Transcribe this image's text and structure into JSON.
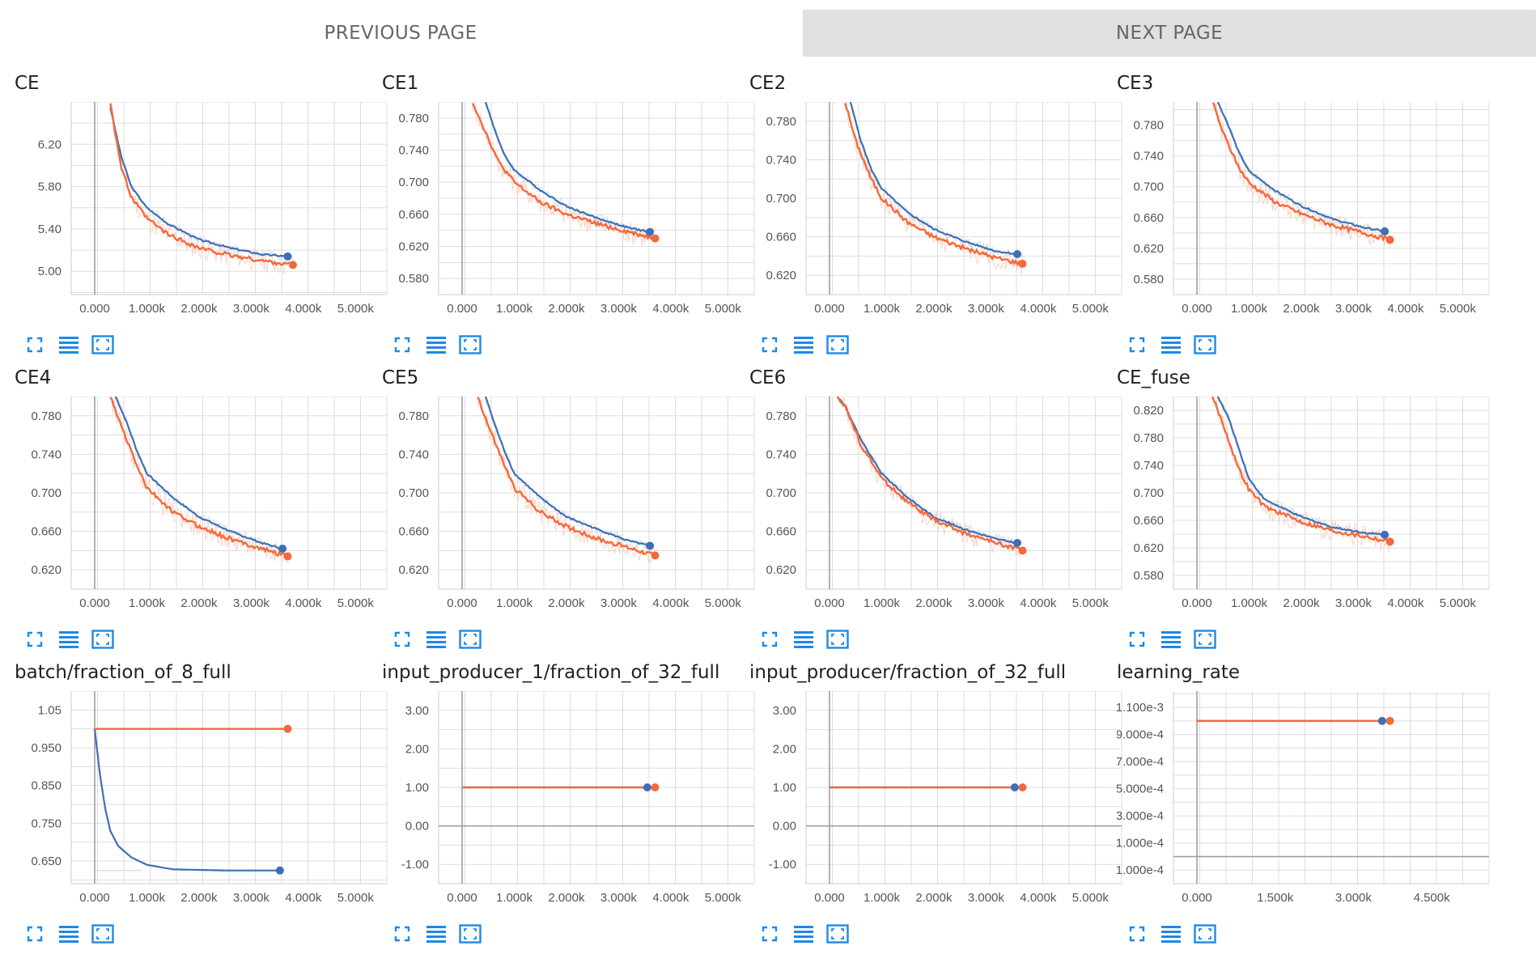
{
  "nav": {
    "prev_label": "PREVIOUS PAGE",
    "next_label": "NEXT PAGE"
  },
  "icons": {
    "expand": "fullscreen-icon",
    "data": "list-icon",
    "fit": "fit-domain-icon"
  },
  "colors": {
    "smoothed": "#f4693b",
    "raw": "#fbd3c4",
    "blue": "#3e6fb5",
    "grid": "#dddddd",
    "axis": "#999999",
    "icon": "#1e88e5"
  },
  "chart_data": [
    {
      "title": "CE",
      "type": "line",
      "xticks": [
        "0.000",
        "1.000k",
        "2.000k",
        "3.000k",
        "4.000k",
        "5.000k"
      ],
      "xlim": [
        -450,
        5600
      ],
      "yticks": [
        "5.00",
        "5.40",
        "5.80",
        "6.20"
      ],
      "ytick_values": [
        5.0,
        5.4,
        5.8,
        6.2
      ],
      "ylim": [
        4.78,
        6.6
      ],
      "series": [
        {
          "values": [
            [
              300,
              6.55
            ],
            [
              500,
              6.1
            ],
            [
              700,
              5.8
            ],
            [
              1000,
              5.6
            ],
            [
              1400,
              5.45
            ],
            [
              2000,
              5.3
            ],
            [
              2600,
              5.22
            ],
            [
              3200,
              5.16
            ],
            [
              3700,
              5.14
            ]
          ]
        },
        {
          "values": [
            [
              300,
              6.6
            ],
            [
              500,
              6.0
            ],
            [
              700,
              5.7
            ],
            [
              1000,
              5.5
            ],
            [
              1400,
              5.35
            ],
            [
              2000,
              5.22
            ],
            [
              2600,
              5.15
            ],
            [
              3200,
              5.1
            ],
            [
              3800,
              5.06
            ]
          ]
        }
      ]
    },
    {
      "title": "CE1",
      "type": "line",
      "xticks": [
        "0.000",
        "1.000k",
        "2.000k",
        "3.000k",
        "4.000k",
        "5.000k"
      ],
      "xlim": [
        -450,
        5600
      ],
      "yticks": [
        "0.580",
        "0.620",
        "0.660",
        "0.700",
        "0.740",
        "0.780"
      ],
      "ytick_values": [
        0.58,
        0.62,
        0.66,
        0.7,
        0.74,
        0.78
      ],
      "ylim": [
        0.56,
        0.8
      ],
      "series": [
        {
          "values": [
            [
              450,
              0.8
            ],
            [
              600,
              0.77
            ],
            [
              800,
              0.735
            ],
            [
              1000,
              0.715
            ],
            [
              1500,
              0.69
            ],
            [
              2000,
              0.67
            ],
            [
              2600,
              0.655
            ],
            [
              3200,
              0.643
            ],
            [
              3600,
              0.638
            ]
          ]
        },
        {
          "values": [
            [
              200,
              0.8
            ],
            [
              400,
              0.77
            ],
            [
              700,
              0.725
            ],
            [
              1000,
              0.7
            ],
            [
              1500,
              0.675
            ],
            [
              2000,
              0.66
            ],
            [
              2600,
              0.648
            ],
            [
              3200,
              0.638
            ],
            [
              3700,
              0.63
            ]
          ]
        }
      ]
    },
    {
      "title": "CE2",
      "type": "line",
      "xticks": [
        "0.000",
        "1.000k",
        "2.000k",
        "3.000k",
        "4.000k",
        "5.000k"
      ],
      "xlim": [
        -450,
        5600
      ],
      "yticks": [
        "0.620",
        "0.660",
        "0.700",
        "0.740",
        "0.780"
      ],
      "ytick_values": [
        0.62,
        0.66,
        0.7,
        0.74,
        0.78
      ],
      "ylim": [
        0.6,
        0.8
      ],
      "series": [
        {
          "values": [
            [
              400,
              0.8
            ],
            [
              600,
              0.76
            ],
            [
              800,
              0.73
            ],
            [
              1000,
              0.71
            ],
            [
              1500,
              0.685
            ],
            [
              2000,
              0.668
            ],
            [
              2600,
              0.655
            ],
            [
              3200,
              0.645
            ],
            [
              3600,
              0.642
            ]
          ]
        },
        {
          "values": [
            [
              300,
              0.8
            ],
            [
              500,
              0.76
            ],
            [
              800,
              0.72
            ],
            [
              1000,
              0.7
            ],
            [
              1500,
              0.675
            ],
            [
              2000,
              0.66
            ],
            [
              2600,
              0.648
            ],
            [
              3200,
              0.638
            ],
            [
              3700,
              0.632
            ]
          ]
        }
      ]
    },
    {
      "title": "CE3",
      "type": "line",
      "xticks": [
        "0.000",
        "1.000k",
        "2.000k",
        "3.000k",
        "4.000k",
        "5.000k"
      ],
      "xlim": [
        -450,
        5600
      ],
      "yticks": [
        "0.580",
        "0.620",
        "0.660",
        "0.700",
        "0.740",
        "0.780"
      ],
      "ytick_values": [
        0.58,
        0.62,
        0.66,
        0.7,
        0.74,
        0.78
      ],
      "ylim": [
        0.56,
        0.81
      ],
      "series": [
        {
          "values": [
            [
              400,
              0.81
            ],
            [
              600,
              0.78
            ],
            [
              800,
              0.745
            ],
            [
              1000,
              0.72
            ],
            [
              1500,
              0.695
            ],
            [
              2000,
              0.675
            ],
            [
              2600,
              0.658
            ],
            [
              3200,
              0.647
            ],
            [
              3600,
              0.642
            ]
          ]
        },
        {
          "values": [
            [
              300,
              0.81
            ],
            [
              500,
              0.77
            ],
            [
              800,
              0.725
            ],
            [
              1000,
              0.705
            ],
            [
              1500,
              0.68
            ],
            [
              2000,
              0.665
            ],
            [
              2600,
              0.65
            ],
            [
              3200,
              0.64
            ],
            [
              3700,
              0.631
            ]
          ]
        }
      ]
    },
    {
      "title": "CE4",
      "type": "line",
      "xticks": [
        "0.000",
        "1.000k",
        "2.000k",
        "3.000k",
        "4.000k",
        "5.000k"
      ],
      "xlim": [
        -450,
        5600
      ],
      "yticks": [
        "0.620",
        "0.660",
        "0.700",
        "0.740",
        "0.780"
      ],
      "ytick_values": [
        0.62,
        0.66,
        0.7,
        0.74,
        0.78
      ],
      "ylim": [
        0.6,
        0.8
      ],
      "series": [
        {
          "values": [
            [
              400,
              0.8
            ],
            [
              600,
              0.775
            ],
            [
              800,
              0.745
            ],
            [
              1000,
              0.72
            ],
            [
              1500,
              0.695
            ],
            [
              2000,
              0.675
            ],
            [
              2600,
              0.66
            ],
            [
              3200,
              0.648
            ],
            [
              3600,
              0.642
            ]
          ]
        },
        {
          "values": [
            [
              300,
              0.8
            ],
            [
              500,
              0.77
            ],
            [
              800,
              0.73
            ],
            [
              1000,
              0.705
            ],
            [
              1500,
              0.68
            ],
            [
              2000,
              0.665
            ],
            [
              2600,
              0.652
            ],
            [
              3200,
              0.642
            ],
            [
              3700,
              0.634
            ]
          ]
        }
      ]
    },
    {
      "title": "CE5",
      "type": "line",
      "xticks": [
        "0.000",
        "1.000k",
        "2.000k",
        "3.000k",
        "4.000k",
        "5.000k"
      ],
      "xlim": [
        -450,
        5600
      ],
      "yticks": [
        "0.620",
        "0.660",
        "0.700",
        "0.740",
        "0.780"
      ],
      "ytick_values": [
        0.62,
        0.66,
        0.7,
        0.74,
        0.78
      ],
      "ylim": [
        0.6,
        0.8
      ],
      "series": [
        {
          "values": [
            [
              450,
              0.8
            ],
            [
              600,
              0.775
            ],
            [
              800,
              0.745
            ],
            [
              1000,
              0.72
            ],
            [
              1500,
              0.695
            ],
            [
              2000,
              0.675
            ],
            [
              2600,
              0.662
            ],
            [
              3200,
              0.65
            ],
            [
              3600,
              0.645
            ]
          ]
        },
        {
          "values": [
            [
              300,
              0.8
            ],
            [
              500,
              0.77
            ],
            [
              800,
              0.73
            ],
            [
              1000,
              0.705
            ],
            [
              1500,
              0.68
            ],
            [
              2000,
              0.665
            ],
            [
              2600,
              0.652
            ],
            [
              3200,
              0.643
            ],
            [
              3700,
              0.635
            ]
          ]
        }
      ]
    },
    {
      "title": "CE6",
      "type": "line",
      "xticks": [
        "0.000",
        "1.000k",
        "2.000k",
        "3.000k",
        "4.000k",
        "5.000k"
      ],
      "xlim": [
        -450,
        5600
      ],
      "yticks": [
        "0.620",
        "0.660",
        "0.700",
        "0.740",
        "0.780"
      ],
      "ytick_values": [
        0.62,
        0.66,
        0.7,
        0.74,
        0.78
      ],
      "ylim": [
        0.6,
        0.8
      ],
      "series": [
        {
          "values": [
            [
              150,
              0.8
            ],
            [
              300,
              0.79
            ],
            [
              600,
              0.755
            ],
            [
              1000,
              0.72
            ],
            [
              1500,
              0.695
            ],
            [
              2000,
              0.675
            ],
            [
              2600,
              0.662
            ],
            [
              3200,
              0.652
            ],
            [
              3600,
              0.648
            ]
          ]
        },
        {
          "values": [
            [
              150,
              0.8
            ],
            [
              300,
              0.79
            ],
            [
              600,
              0.75
            ],
            [
              1000,
              0.715
            ],
            [
              1500,
              0.69
            ],
            [
              2000,
              0.672
            ],
            [
              2600,
              0.658
            ],
            [
              3200,
              0.648
            ],
            [
              3700,
              0.64
            ]
          ]
        }
      ]
    },
    {
      "title": "CE_fuse",
      "type": "line",
      "xticks": [
        "0.000",
        "1.000k",
        "2.000k",
        "3.000k",
        "4.000k",
        "5.000k"
      ],
      "xlim": [
        -450,
        5600
      ],
      "yticks": [
        "0.580",
        "0.620",
        "0.660",
        "0.700",
        "0.740",
        "0.780",
        "0.820"
      ],
      "ytick_values": [
        0.58,
        0.62,
        0.66,
        0.7,
        0.74,
        0.78,
        0.82
      ],
      "ylim": [
        0.56,
        0.84
      ],
      "series": [
        {
          "values": [
            [
              400,
              0.84
            ],
            [
              600,
              0.81
            ],
            [
              800,
              0.765
            ],
            [
              1000,
              0.72
            ],
            [
              1300,
              0.69
            ],
            [
              2000,
              0.665
            ],
            [
              2600,
              0.65
            ],
            [
              3200,
              0.642
            ],
            [
              3600,
              0.639
            ]
          ]
        },
        {
          "values": [
            [
              300,
              0.84
            ],
            [
              500,
              0.8
            ],
            [
              800,
              0.735
            ],
            [
              1000,
              0.705
            ],
            [
              1300,
              0.68
            ],
            [
              2000,
              0.658
            ],
            [
              2600,
              0.645
            ],
            [
              3200,
              0.637
            ],
            [
              3700,
              0.629
            ]
          ]
        }
      ]
    },
    {
      "title": "batch/fraction_of_8_full",
      "type": "line",
      "xticks": [
        "0.000",
        "1.000k",
        "2.000k",
        "3.000k",
        "4.000k",
        "5.000k"
      ],
      "xlim": [
        -450,
        5600
      ],
      "yticks": [
        "0.650",
        "0.750",
        "0.850",
        "0.950",
        "1.05"
      ],
      "ytick_values": [
        0.65,
        0.75,
        0.85,
        0.95,
        1.05
      ],
      "ylim": [
        0.59,
        1.1
      ],
      "series": [
        {
          "values": [
            [
              0,
              1.0
            ],
            [
              100,
              0.88
            ],
            [
              200,
              0.79
            ],
            [
              300,
              0.73
            ],
            [
              450,
              0.69
            ],
            [
              700,
              0.66
            ],
            [
              1000,
              0.64
            ],
            [
              1500,
              0.628
            ],
            [
              2500,
              0.625
            ],
            [
              3550,
              0.625
            ]
          ]
        },
        {
          "values": [
            [
              0,
              1.0
            ],
            [
              3700,
              1.0
            ]
          ]
        }
      ]
    },
    {
      "title": "input_producer_1/fraction_of_32_full",
      "type": "line",
      "xticks": [
        "0.000",
        "1.000k",
        "2.000k",
        "3.000k",
        "4.000k",
        "5.000k"
      ],
      "xlim": [
        -450,
        5600
      ],
      "yticks": [
        "-1.00",
        "0.00",
        "1.00",
        "2.00",
        "3.00"
      ],
      "ytick_values": [
        -1,
        0,
        1,
        2,
        3
      ],
      "ylim": [
        -1.5,
        3.5
      ],
      "series": [
        {
          "values": [
            [
              0,
              1
            ],
            [
              3550,
              1
            ]
          ]
        },
        {
          "values": [
            [
              0,
              1
            ],
            [
              3700,
              1
            ]
          ]
        }
      ]
    },
    {
      "title": "input_producer/fraction_of_32_full",
      "type": "line",
      "xticks": [
        "0.000",
        "1.000k",
        "2.000k",
        "3.000k",
        "4.000k",
        "5.000k"
      ],
      "xlim": [
        -450,
        5600
      ],
      "yticks": [
        "-1.00",
        "0.00",
        "1.00",
        "2.00",
        "3.00"
      ],
      "ytick_values": [
        -1,
        0,
        1,
        2,
        3
      ],
      "ylim": [
        -1.5,
        3.5
      ],
      "series": [
        {
          "values": [
            [
              0,
              1
            ],
            [
              3550,
              1
            ]
          ]
        },
        {
          "values": [
            [
              0,
              1
            ],
            [
              3700,
              1
            ]
          ]
        }
      ]
    },
    {
      "title": "learning_rate",
      "type": "line",
      "xticks": [
        "0.000",
        "1.500k",
        "3.000k",
        "4.500k"
      ],
      "xtick_values": [
        0,
        1500,
        3000,
        4500
      ],
      "xlim": [
        -450,
        5600
      ],
      "yticks": [
        "-1.000e-4",
        "1.000e-4",
        "3.000e-4",
        "5.000e-4",
        "7.000e-4",
        "9.000e-4",
        "1.100e-3"
      ],
      "ytick_values": [
        -0.0001,
        0.0001,
        0.0003,
        0.0005,
        0.0007,
        0.0009,
        0.0011
      ],
      "ylim": [
        -0.0002,
        0.00122
      ],
      "series": [
        {
          "values": [
            [
              0,
              0.001
            ],
            [
              3550,
              0.001
            ]
          ]
        },
        {
          "values": [
            [
              0,
              0.001
            ],
            [
              3700,
              0.001
            ]
          ]
        }
      ]
    }
  ]
}
